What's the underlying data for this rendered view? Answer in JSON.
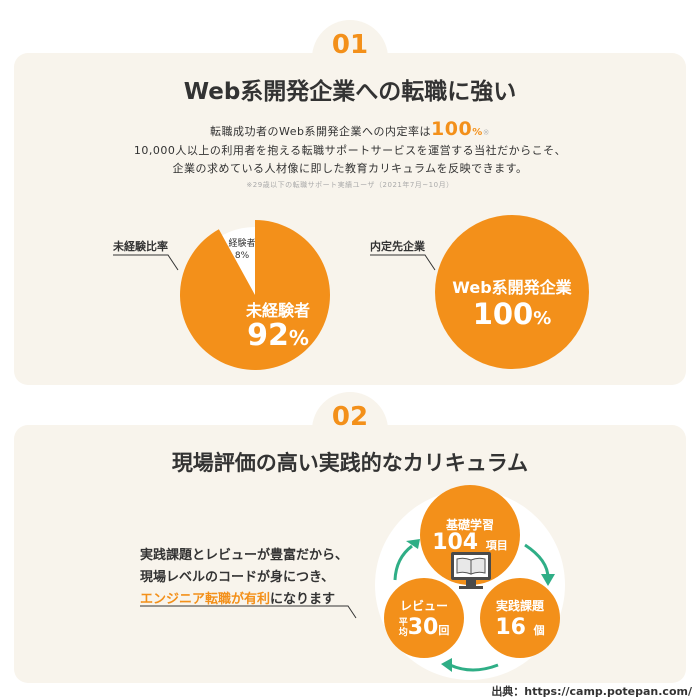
{
  "section1": {
    "number": "01",
    "title": "Web系開発企業への転職に強い",
    "line1_prefix": "転職成功者のWeb系開発企業への内定率は",
    "line1_value": "100",
    "line1_unit": "%",
    "line1_mark": "※",
    "line2": "10,000人以上の利用者を抱える転職サポートサービスを運営する当社だからこそ、",
    "line3": "企業の求めている人材像に即した教育カリキュラムを反映できます。",
    "note": "※29歳以下の転職サポート実績ユーザ（2021年7月~10月）",
    "pie_label": "未経験比率",
    "pie": {
      "main_label": "未経験者",
      "main_value": "92",
      "main_unit": "%",
      "small_label": "経験者",
      "small_value": "8%",
      "main_fraction": 0.92
    },
    "circle_label": "内定先企業",
    "circle": {
      "label": "Web系開発企業",
      "value": "100",
      "unit": "%"
    }
  },
  "section2": {
    "number": "02",
    "title": "現場評価の高い実践的なカリキュラム",
    "desc_line1": "実践課題とレビューが豊富だから、",
    "desc_line2": "現場レベルのコードが身につき、",
    "desc_line3_highlight": "エンジニア転職が有利",
    "desc_line3_rest": "になります",
    "nodes": {
      "basic": {
        "label": "基礎学習",
        "value": "104",
        "unit": "項目"
      },
      "practice": {
        "label": "実践課題",
        "value": "16",
        "unit": "個"
      },
      "review": {
        "label": "レビュー",
        "prefix": "平均",
        "value": "30",
        "unit": "回"
      }
    }
  },
  "source": "出典：https://camp.potepan.com/",
  "colors": {
    "accent": "#f3901a",
    "panel": "#f8f4ec",
    "arrow": "#2fae86"
  }
}
